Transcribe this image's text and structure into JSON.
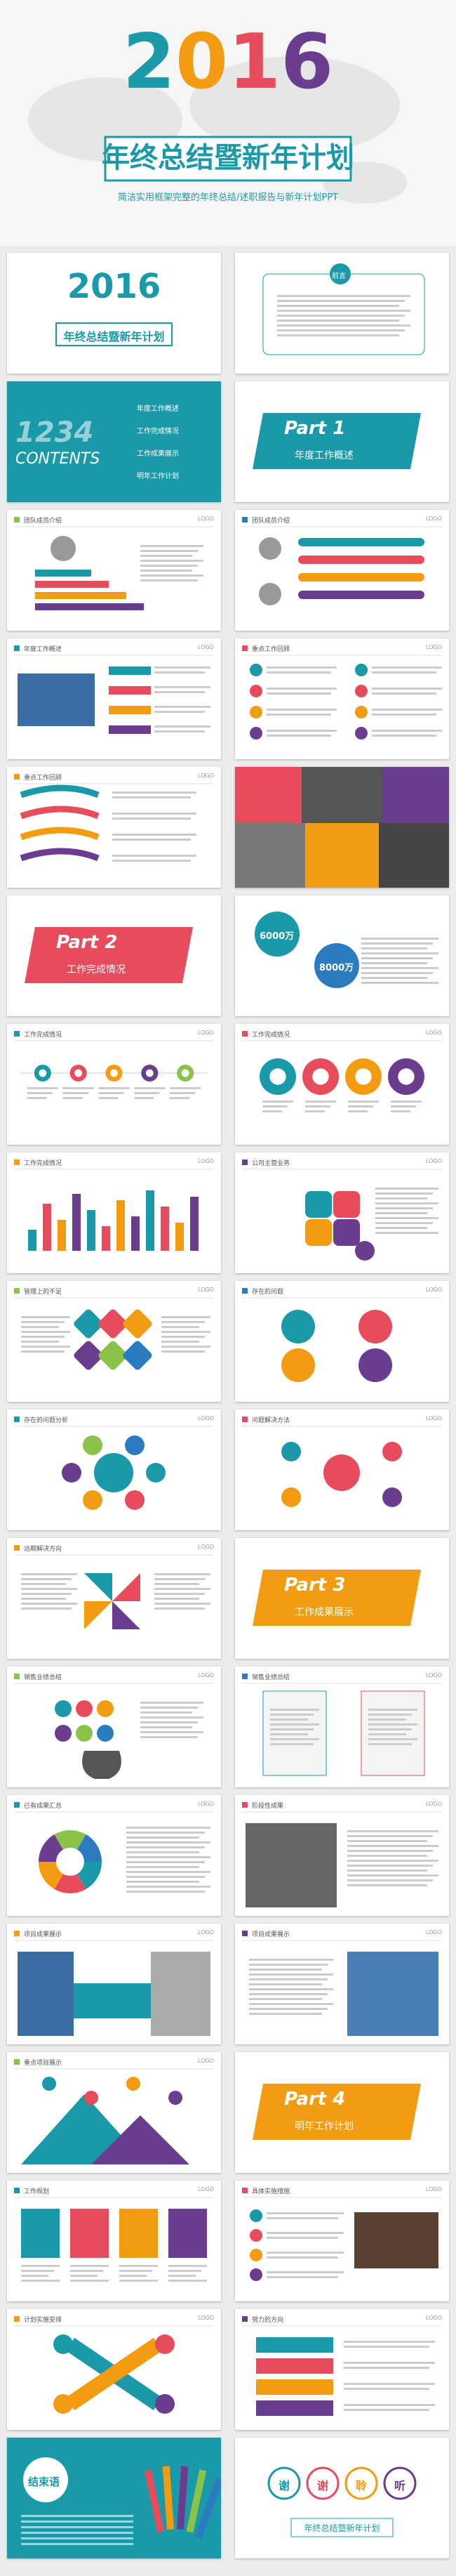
{
  "hero": {
    "year": "2016",
    "title": "年终总结暨新年计划",
    "subtitle": "简洁实用框架完整的年终总结/述职报告与新年计划PPT"
  },
  "logo": "LOGO",
  "slides": [
    {
      "year": "2016",
      "heading": "年终总结暨新年计划"
    },
    {
      "heading": "前言"
    },
    {
      "big": "1234",
      "label": "CONTENTS",
      "items": [
        "年度工作概述",
        "工作完成情况",
        "工作成果展示",
        "明年工作计划"
      ]
    },
    {
      "part": "Part 1",
      "heading": "年度工作概述"
    },
    {
      "title": "团队成员介绍"
    },
    {
      "title": "团队成员介绍"
    },
    {
      "title": "年度工作概述"
    },
    {
      "title": "重点工作回顾"
    },
    {
      "title": "重点工作回顾"
    },
    {},
    {
      "part": "Part 2",
      "heading": "工作完成情况"
    },
    {
      "labels": [
        "6000万",
        "8000万"
      ]
    },
    {
      "title": "工作完成情况"
    },
    {
      "title": "工作完成情况"
    },
    {
      "title": "工作完成情况"
    },
    {
      "title": "公司主营业务"
    },
    {
      "title": "管理上的不足"
    },
    {
      "title": "存在的问题"
    },
    {
      "title": "存在的问题分析"
    },
    {
      "title": "问题解决方法"
    },
    {
      "title": "远期解决方向"
    },
    {
      "part": "Part 3",
      "heading": "工作成果展示"
    },
    {
      "title": "销售业绩总结"
    },
    {
      "title": "销售业绩总结"
    },
    {
      "title": "已有成果汇总"
    },
    {
      "title": "阶段性成果"
    },
    {
      "title": "项目成果展示"
    },
    {
      "title": "项目成果展示"
    },
    {
      "title": "重点项目展示"
    },
    {
      "part": "Part 4",
      "heading": "明年工作计划"
    },
    {
      "title": "工作规划"
    },
    {
      "title": "具体实施措施"
    },
    {
      "title": "计划实施安排"
    },
    {
      "title": "努力的方向"
    },
    {
      "heading": "结束语"
    },
    {
      "chars": [
        "谢",
        "谢",
        "聆",
        "听"
      ],
      "heading": "年终总结暨新年计划"
    }
  ]
}
